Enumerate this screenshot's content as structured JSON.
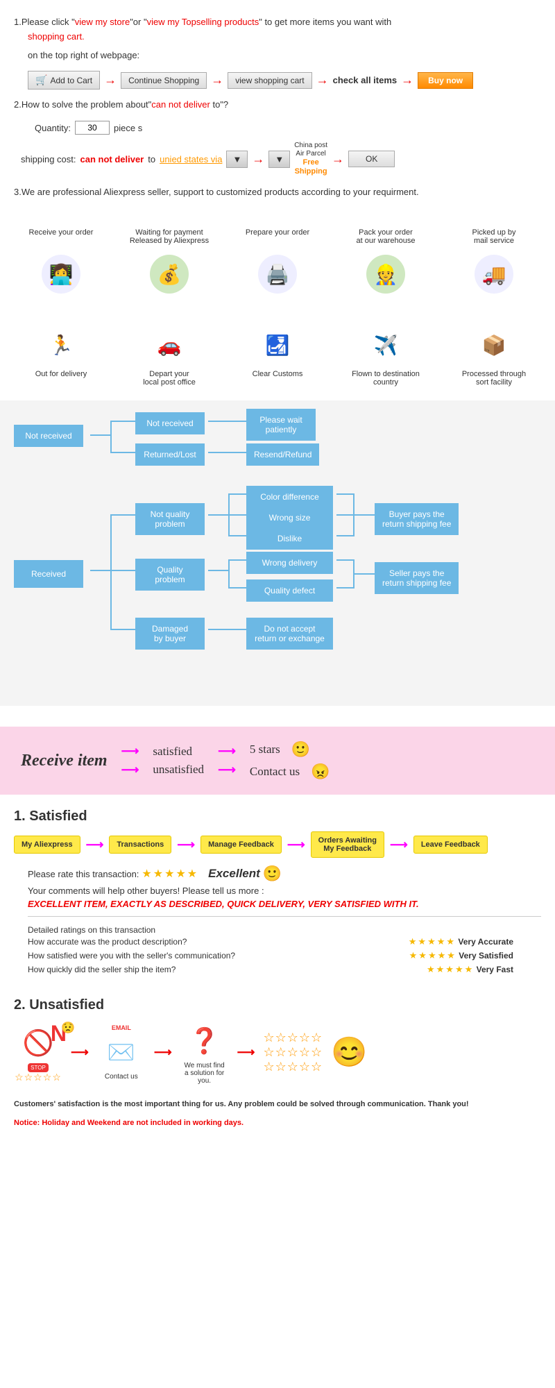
{
  "intro": {
    "line1_prefix": "1.Please click \"",
    "link_store": "view my store",
    "line1_mid": "\"or \"",
    "link_top": "view my Topselling products",
    "line1_suffix": "\" to get more items you want with ",
    "shopping_cart": "shopping cart.",
    "subtext": "on the top right of webpage:",
    "btn_cart": "Add to Cart",
    "btn_continue": "Continue Shopping",
    "btn_view": "view shopping cart",
    "txt_check": "check all items",
    "btn_buy": "Buy now"
  },
  "deliver": {
    "line_prefix": "2.How to solve the problem about\"",
    "cannot": "can not deliver",
    "line_suffix": " to\"?",
    "qty_label": "Quantity:",
    "qty_val": "30",
    "pieces": "piece s",
    "ship_label": "shipping cost:",
    "cannot2": "can not deliver",
    "to": " to ",
    "via": "unied states via",
    "chinapost1": "China post",
    "chinapost2": "Air Parcel",
    "free": "Free",
    "shipping": "Shipping",
    "ok": "OK"
  },
  "line3": "3.We are professional Aliexpress seller, support to customized products according to your requirment.",
  "process": [
    {
      "label": "Receive your order",
      "color": "#f6a",
      "glyph": "👩‍💻"
    },
    {
      "label": "Waiting for payment\nReleased by Aliexpress",
      "color": "#5b5",
      "glyph": "💰"
    },
    {
      "label": "Prepare your order",
      "color": "#4bd",
      "glyph": "🖨️"
    },
    {
      "label": "Pack your order\nat our warehouse",
      "color": "#47c",
      "glyph": "👷"
    },
    {
      "label": "Picked up by\nmail service",
      "color": "#38c",
      "glyph": "🚚"
    },
    {
      "label": "Processed through\nsort facility",
      "color": "#c66",
      "glyph": "📦"
    },
    {
      "label": "Flown to destination\ncountry",
      "color": "#5b5",
      "glyph": "✈️"
    },
    {
      "label": "Clear Customs",
      "color": "#f90",
      "glyph": "🛃"
    },
    {
      "label": "Depart your\nlocal post office",
      "color": "#47c",
      "glyph": "🚗"
    },
    {
      "label": "Out for delivery",
      "color": "#e33",
      "glyph": "🏃"
    }
  ],
  "flow": {
    "not_received": "Not received",
    "nr_nr": "Not received",
    "nr_rl": "Returned/Lost",
    "nr_wait": "Please wait\npatiently",
    "nr_resend": "Resend/Refund",
    "received": "Received",
    "rc_nq": "Not quality\nproblem",
    "rc_q": "Quality\nproblem",
    "rc_dmg": "Damaged\nby buyer",
    "color_diff": "Color difference",
    "wrong_size": "Wrong size",
    "dislike": "Dislike",
    "wrong_del": "Wrong delivery",
    "qual_def": "Quality defect",
    "no_return": "Do not accept\nreturn or exchange",
    "buyer_pays": "Buyer pays the\nreturn shipping fee",
    "seller_pays": "Seller pays the\nreturn shipping fee",
    "box_color": "#6cb8e4"
  },
  "pink": {
    "title": "Receive item",
    "satisfied": "satisfied",
    "unsatisfied": "unsatisfied",
    "stars5": "5 stars",
    "contact": "Contact us"
  },
  "satisfied": {
    "header": "1.  Satisfied",
    "pills": [
      "My Aliexpress",
      "Transactions",
      "Manage Feedback",
      "Orders Awaiting\nMy Feedback",
      "Leave Feedback"
    ],
    "rate_label": "Please rate this transaction:",
    "excellent": "Excellent",
    "comments": "Your comments will help other buyers! Please tell us more :",
    "review": "EXCELLENT ITEM, EXACTLY AS DESCRIBED, QUICK DELIVERY, VERY SATISFIED WITH IT.",
    "detail_hdr": "Detailed ratings on this transaction",
    "ratings": [
      {
        "q": "How accurate was the product description?",
        "v": "Very Accurate"
      },
      {
        "q": "How satisfied were you with the seller's communication?",
        "v": "Very Satisfied"
      },
      {
        "q": "How quickly did the seller ship the item?",
        "v": "Very Fast"
      }
    ]
  },
  "unsatisfied": {
    "header": "2.  Unsatisfied",
    "no": "N",
    "stop": "STOP",
    "email": "EMAIL",
    "contact": "Contact us",
    "find": "We must find\na solution for\nyou."
  },
  "footer": {
    "l1": "Customers' satisfaction is the most important thing for us. Any problem could be solved through communication. Thank you!",
    "l2": "Notice: Holiday and Weekend are not included in working days."
  },
  "colors": {
    "red": "#e00",
    "orange": "#ff8a00",
    "pink": "#fbd5e8",
    "flow_blue": "#6cb8e4",
    "yellow_pill": "#ffe94a",
    "star": "#f6b800"
  }
}
